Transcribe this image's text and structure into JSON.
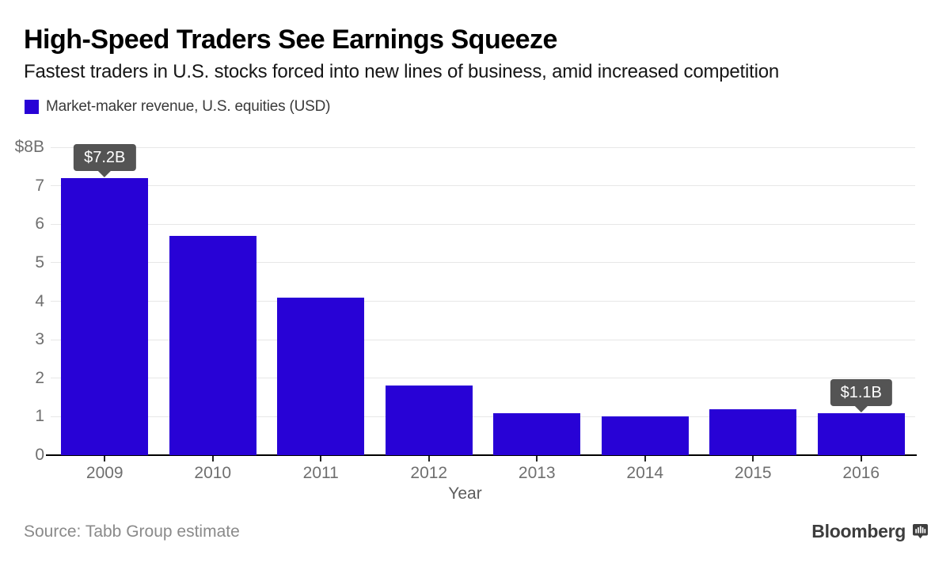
{
  "header": {
    "title": "High-Speed Traders See Earnings Squeeze",
    "subtitle": "Fastest traders in U.S. stocks forced into new lines of business, amid increased competition",
    "legend": {
      "label": "Market-maker revenue, U.S. equities (USD)"
    }
  },
  "chart_data": {
    "type": "bar",
    "categories": [
      "2009",
      "2010",
      "2011",
      "2012",
      "2013",
      "2014",
      "2015",
      "2016"
    ],
    "values": [
      7.2,
      5.7,
      4.1,
      1.8,
      1.1,
      1.0,
      1.2,
      1.1
    ],
    "series_name": "Market-maker revenue, U.S. equities (USD)",
    "title": "High-Speed Traders See Earnings Squeeze",
    "xlabel": "Year",
    "ylabel": "",
    "ylim": [
      0,
      8
    ],
    "ytick_labels": [
      "0",
      "1",
      "2",
      "3",
      "4",
      "5",
      "6",
      "7",
      "$8B"
    ],
    "grid": true,
    "legend_position": "top-left",
    "annotations": [
      {
        "category": "2009",
        "label": "$7.2B"
      },
      {
        "category": "2016",
        "label": "$1.1B"
      }
    ]
  },
  "colors": {
    "bar": "#2802D6",
    "callout_bg": "#545454",
    "callout_text": "#ffffff",
    "gridline": "#e7e7e7",
    "axis_line": "#000000",
    "tick_label": "#6f6f6f",
    "brand": "#3d3d3d"
  },
  "footer": {
    "source": "Source: Tabb Group estimate",
    "brand": "Bloomberg"
  }
}
